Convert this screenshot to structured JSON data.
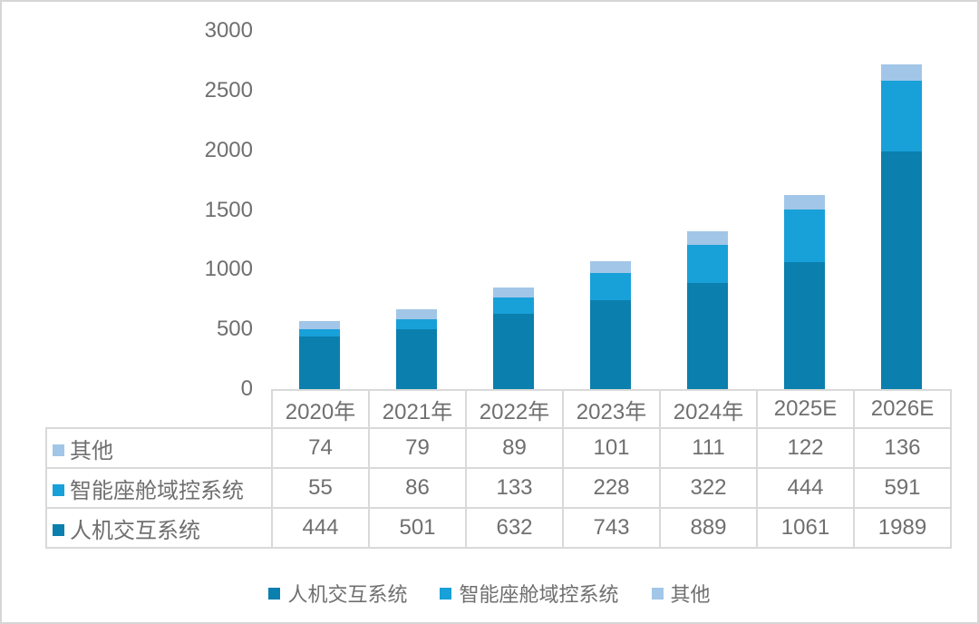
{
  "chart_data": {
    "type": "bar",
    "stacked": true,
    "title": "",
    "xlabel": "",
    "ylabel": "",
    "categories": [
      "2020年",
      "2021年",
      "2022年",
      "2023年",
      "2024年",
      "2025E",
      "2026E"
    ],
    "series": [
      {
        "name": "人机交互系统",
        "color": "#0b7fad",
        "values": [
          444,
          501,
          632,
          743,
          889,
          1061,
          1989
        ]
      },
      {
        "name": "智能座舱域控系统",
        "color": "#18a0d9",
        "values": [
          55,
          86,
          133,
          228,
          322,
          444,
          591
        ]
      },
      {
        "name": "其他",
        "color": "#a2c6e7",
        "values": [
          74,
          79,
          89,
          101,
          111,
          122,
          136
        ]
      }
    ],
    "ylim": [
      0,
      3000
    ],
    "yticks": [
      0,
      500,
      1000,
      1500,
      2000,
      2500,
      3000
    ],
    "grid": false,
    "legend_position": "bottom"
  },
  "table": {
    "header": [
      "2020年",
      "2021年",
      "2022年",
      "2023年",
      "2024年",
      "2025E",
      "2026E"
    ],
    "rows": [
      {
        "label": "其他",
        "color": "#a2c6e7",
        "values": [
          "74",
          "79",
          "89",
          "101",
          "111",
          "122",
          "136"
        ]
      },
      {
        "label": "智能座舱域控系统",
        "color": "#18a0d9",
        "values": [
          "55",
          "86",
          "133",
          "228",
          "322",
          "444",
          "591"
        ]
      },
      {
        "label": "人机交互系统",
        "color": "#0b7fad",
        "values": [
          "444",
          "501",
          "632",
          "743",
          "889",
          "1061",
          "1989"
        ]
      }
    ]
  },
  "legend": {
    "items": [
      {
        "label": "人机交互系统",
        "color": "#0b7fad"
      },
      {
        "label": "智能座舱域控系统",
        "color": "#18a0d9"
      },
      {
        "label": "其他",
        "color": "#a2c6e7"
      }
    ]
  },
  "colors": {
    "text": "#6f6f6f",
    "table_border": "#d9d9d9",
    "frame_border": "#d6d6d6",
    "background": "#ffffff"
  }
}
